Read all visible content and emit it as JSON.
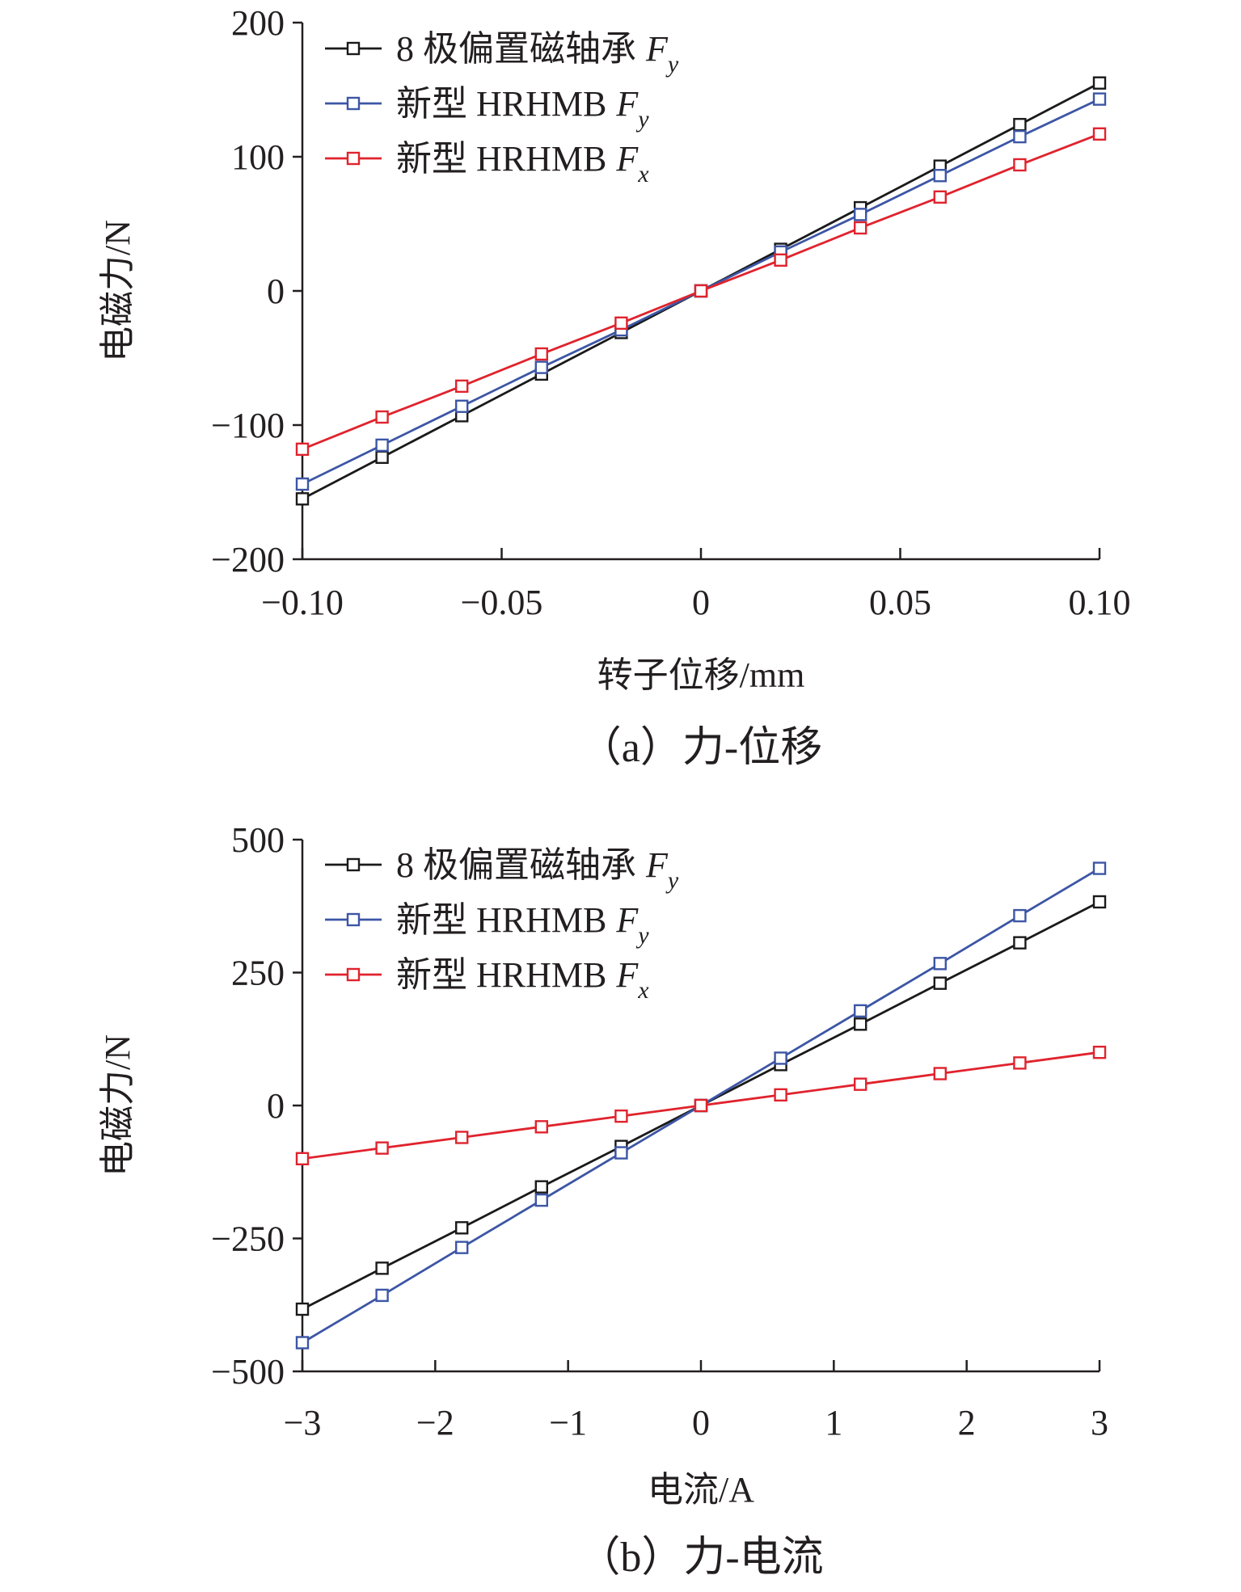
{
  "chart_data": [
    {
      "type": "line",
      "title": "",
      "caption": "（a）力-位移",
      "xlabel": "转子位移/mm",
      "ylabel": "电磁力/N",
      "xlim": [
        -0.1,
        0.1
      ],
      "ylim": [
        -200,
        200
      ],
      "xticks": [
        -0.1,
        -0.05,
        0,
        0.05,
        0.1
      ],
      "xtick_labels": [
        "−0.10",
        "−0.05",
        "0",
        "0.05",
        "0.10"
      ],
      "yticks": [
        -200,
        -100,
        0,
        100,
        200
      ],
      "ytick_labels": [
        "−200",
        "−100",
        "0",
        "100",
        "200"
      ],
      "legend_position": "top-left",
      "x": [
        -0.1,
        -0.08,
        -0.06,
        -0.04,
        -0.02,
        0,
        0.02,
        0.04,
        0.06,
        0.08,
        0.1
      ],
      "series": [
        {
          "name": "8 极偏置磁轴承",
          "sub": "y",
          "color": "#1a1a1a",
          "values": [
            -155,
            -124,
            -93,
            -62,
            -31,
            0,
            31,
            62,
            93,
            124,
            155
          ]
        },
        {
          "name": "新型 HRHMB",
          "sub": "y",
          "color": "#3c56a5",
          "values": [
            -144,
            -115,
            -86,
            -57,
            -29,
            0,
            29,
            57,
            86,
            115,
            143
          ]
        },
        {
          "name": "新型 HRHMB",
          "sub": "x",
          "color": "#e0232d",
          "values": [
            -118,
            -94,
            -71,
            -47,
            -24,
            0,
            23,
            47,
            70,
            94,
            117
          ]
        }
      ]
    },
    {
      "type": "line",
      "title": "",
      "caption": "（b）力-电流",
      "xlabel": "电流/A",
      "ylabel": "电磁力/N",
      "xlim": [
        -3,
        3
      ],
      "ylim": [
        -500,
        500
      ],
      "xticks": [
        -3,
        -2,
        -1,
        0,
        1,
        2,
        3
      ],
      "xtick_labels": [
        "−3",
        "−2",
        "−1",
        "0",
        "1",
        "2",
        "3"
      ],
      "yticks": [
        -500,
        -250,
        0,
        250,
        500
      ],
      "ytick_labels": [
        "−500",
        "−250",
        "0",
        "250",
        "500"
      ],
      "legend_position": "top-left",
      "x": [
        -3,
        -2.4,
        -1.8,
        -1.2,
        -0.6,
        0,
        0.6,
        1.2,
        1.8,
        2.4,
        3
      ],
      "series": [
        {
          "name": "8 极偏置磁轴承",
          "sub": "y",
          "color": "#1a1a1a",
          "values": [
            -383,
            -306,
            -230,
            -153,
            -77,
            0,
            77,
            153,
            230,
            306,
            383
          ]
        },
        {
          "name": "新型 HRHMB",
          "sub": "y",
          "color": "#3c56a5",
          "values": [
            -446,
            -357,
            -267,
            -178,
            -89,
            0,
            89,
            178,
            267,
            357,
            446
          ]
        },
        {
          "name": "新型 HRHMB",
          "sub": "x",
          "color": "#e0232d",
          "values": [
            -100,
            -80,
            -60,
            -40,
            -20,
            0,
            20,
            40,
            60,
            80,
            100
          ]
        }
      ]
    }
  ]
}
